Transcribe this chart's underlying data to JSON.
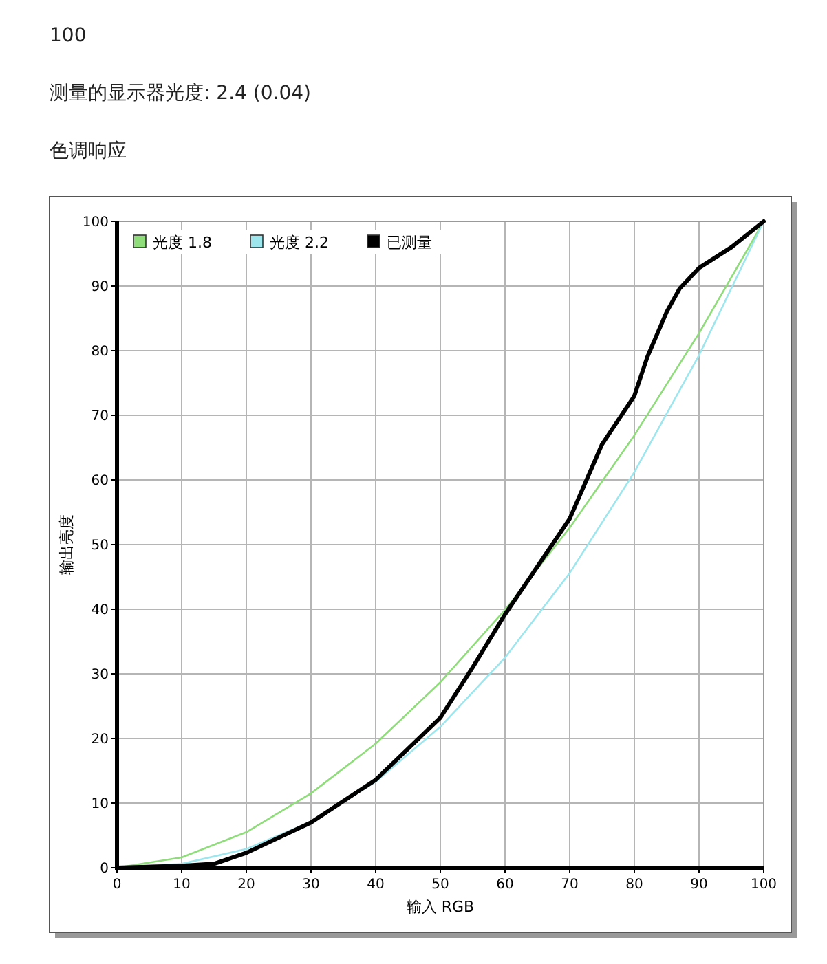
{
  "chart_data": {
    "type": "line",
    "title": "色调响应",
    "annotations": [
      "100",
      "测量的显示器光度: 2.4 (0.04)"
    ],
    "xlabel": "输入 RGB",
    "ylabel": "输出亮度",
    "xlim": [
      0,
      100
    ],
    "ylim": [
      0,
      100
    ],
    "xticks": [
      0,
      10,
      20,
      30,
      40,
      50,
      60,
      70,
      80,
      90,
      100
    ],
    "yticks": [
      0,
      10,
      20,
      30,
      40,
      50,
      60,
      70,
      80,
      90,
      100
    ],
    "grid": true,
    "legend": "top left",
    "series": [
      {
        "name": "光度 1.8",
        "color": "#8fdc7a",
        "x": [
          0,
          10,
          20,
          30,
          40,
          50,
          60,
          70,
          80,
          90,
          100
        ],
        "values": [
          0,
          1.6,
          5.5,
          11.5,
          19.2,
          28.7,
          39.9,
          52.6,
          66.9,
          82.7,
          100
        ]
      },
      {
        "name": "光度 2.2",
        "color": "#9ee6ee",
        "x": [
          0,
          10,
          20,
          30,
          40,
          50,
          60,
          70,
          80,
          90,
          100
        ],
        "values": [
          0,
          0.6,
          2.9,
          7.1,
          13.3,
          21.8,
          32.5,
          45.6,
          61.2,
          79.3,
          100
        ]
      },
      {
        "name": "已测量",
        "color": "#000000",
        "x": [
          0,
          10,
          15,
          20,
          30,
          40,
          50,
          55,
          60,
          65,
          70,
          75,
          80,
          82,
          85,
          87,
          90,
          95,
          100
        ],
        "values": [
          0,
          0.3,
          0.6,
          2.3,
          7,
          13.6,
          23.2,
          31,
          39.2,
          46.6,
          54,
          65.5,
          73,
          79,
          86,
          89.6,
          92.8,
          96,
          100
        ]
      }
    ]
  }
}
